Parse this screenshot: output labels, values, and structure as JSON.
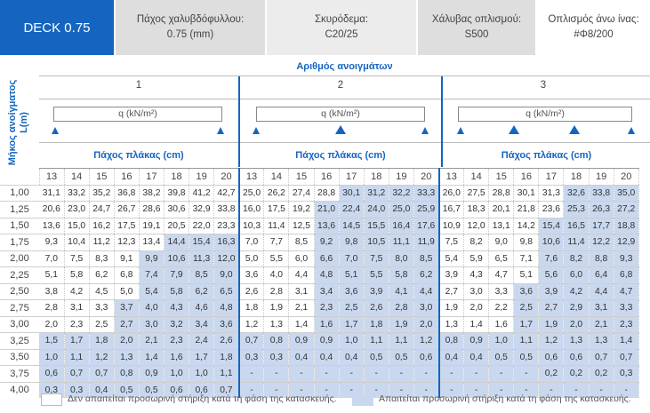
{
  "header": {
    "title": "DECK 0.75",
    "boxes": [
      {
        "label": "Πάχος χαλυβδόφυλλου:",
        "value": "0.75 (mm)"
      },
      {
        "label": "Σκυρόδεμα:",
        "value": "C20/25"
      },
      {
        "label": "Χάλυβας οπλισμού:",
        "value": "S500"
      },
      {
        "label": "Οπλισμός άνω ίνας:",
        "value": "#Φ8/200"
      }
    ]
  },
  "side_label_line1": "Μήκος ανοίγματος",
  "side_label_line2": "L(m)",
  "spans_title": "Αριθμός ανοιγμάτων",
  "groups": [
    {
      "number": "1",
      "load_label": "q (kN/m²)",
      "thickness_title": "Πάχος πλάκας (cm)"
    },
    {
      "number": "2",
      "load_label": "q (kN/m²)",
      "thickness_title": "Πάχος πλάκας (cm)"
    },
    {
      "number": "3",
      "load_label": "q (kN/m²)",
      "thickness_title": "Πάχος πλάκας (cm)"
    }
  ],
  "thicknesses": [
    "13",
    "14",
    "15",
    "16",
    "17",
    "18",
    "19",
    "20"
  ],
  "rows": [
    {
      "L": "1,00",
      "v": [
        [
          "31,1",
          "33,2",
          "35,2",
          "36,8",
          "38,2",
          "39,8",
          "41,2",
          "42,7"
        ],
        [
          "25,0",
          "26,2",
          "27,4",
          "28,8",
          "30,1",
          "31,2",
          "32,2",
          "33,3"
        ],
        [
          "26,0",
          "27,5",
          "28,8",
          "30,1",
          "31,3",
          "32,6",
          "33,8",
          "35,0"
        ]
      ]
    },
    {
      "L": "1,25",
      "v": [
        [
          "20,6",
          "23,0",
          "24,7",
          "26,7",
          "28,6",
          "30,6",
          "32,9",
          "33,8"
        ],
        [
          "16,0",
          "17,5",
          "19,2",
          "21,0",
          "22,4",
          "24,0",
          "25,0",
          "25,9"
        ],
        [
          "16,7",
          "18,3",
          "20,1",
          "21,8",
          "23,6",
          "25,3",
          "26,3",
          "27,2"
        ]
      ]
    },
    {
      "L": "1,50",
      "v": [
        [
          "13,6",
          "15,0",
          "16,2",
          "17,5",
          "19,1",
          "20,5",
          "22,0",
          "23,3"
        ],
        [
          "10,3",
          "11,4",
          "12,5",
          "13,6",
          "14,5",
          "15,5",
          "16,4",
          "17,6"
        ],
        [
          "10,9",
          "12,0",
          "13,1",
          "14,2",
          "15,4",
          "16,5",
          "17,7",
          "18,8"
        ]
      ]
    },
    {
      "L": "1,75",
      "v": [
        [
          "9,3",
          "10,4",
          "11,2",
          "12,3",
          "13,4",
          "14,4",
          "15,4",
          "16,3"
        ],
        [
          "7,0",
          "7,7",
          "8,5",
          "9,2",
          "9,8",
          "10,5",
          "11,1",
          "11,9"
        ],
        [
          "7,5",
          "8,2",
          "9,0",
          "9,8",
          "10,6",
          "11,4",
          "12,2",
          "12,9"
        ]
      ]
    },
    {
      "L": "2,00",
      "v": [
        [
          "7,0",
          "7,5",
          "8,3",
          "9,1",
          "9,9",
          "10,6",
          "11,3",
          "12,0"
        ],
        [
          "5,0",
          "5,5",
          "6,0",
          "6,6",
          "7,0",
          "7,5",
          "8,0",
          "8,5"
        ],
        [
          "5,4",
          "5,9",
          "6,5",
          "7,1",
          "7,6",
          "8,2",
          "8,8",
          "9,3"
        ]
      ]
    },
    {
      "L": "2,25",
      "v": [
        [
          "5,1",
          "5,8",
          "6,2",
          "6,8",
          "7,4",
          "7,9",
          "8,5",
          "9,0"
        ],
        [
          "3,6",
          "4,0",
          "4,4",
          "4,8",
          "5,1",
          "5,5",
          "5,8",
          "6,2"
        ],
        [
          "3,9",
          "4,3",
          "4,7",
          "5,1",
          "5,6",
          "6,0",
          "6,4",
          "6,8"
        ]
      ]
    },
    {
      "L": "2,50",
      "v": [
        [
          "3,8",
          "4,2",
          "4,5",
          "5,0",
          "5,4",
          "5,8",
          "6,2",
          "6,5"
        ],
        [
          "2,6",
          "2,8",
          "3,1",
          "3,4",
          "3,6",
          "3,9",
          "4,1",
          "4,4"
        ],
        [
          "2,7",
          "3,0",
          "3,3",
          "3,6",
          "3,9",
          "4,2",
          "4,4",
          "4,7"
        ]
      ]
    },
    {
      "L": "2,75",
      "v": [
        [
          "2,8",
          "3,1",
          "3,3",
          "3,7",
          "4,0",
          "4,3",
          "4,6",
          "4,8"
        ],
        [
          "1,8",
          "1,9",
          "2,1",
          "2,3",
          "2,5",
          "2,6",
          "2,8",
          "3,0"
        ],
        [
          "1,9",
          "2,0",
          "2,2",
          "2,5",
          "2,7",
          "2,9",
          "3,1",
          "3,3"
        ]
      ]
    },
    {
      "L": "3,00",
      "v": [
        [
          "2,0",
          "2,3",
          "2,5",
          "2,7",
          "3,0",
          "3,2",
          "3,4",
          "3,6"
        ],
        [
          "1,2",
          "1,3",
          "1,4",
          "1,6",
          "1,7",
          "1,8",
          "1,9",
          "2,0"
        ],
        [
          "1,3",
          "1,4",
          "1,6",
          "1,7",
          "1,9",
          "2,0",
          "2,1",
          "2,3"
        ]
      ]
    },
    {
      "L": "3,25",
      "v": [
        [
          "1,5",
          "1,7",
          "1,8",
          "2,0",
          "2,1",
          "2,3",
          "2,4",
          "2,6"
        ],
        [
          "0,7",
          "0,8",
          "0,9",
          "0,9",
          "1,0",
          "1,1",
          "1,1",
          "1,2"
        ],
        [
          "0,8",
          "0,9",
          "1,0",
          "1,1",
          "1,2",
          "1,3",
          "1,3",
          "1,4"
        ]
      ]
    },
    {
      "L": "3,50",
      "v": [
        [
          "1,0",
          "1,1",
          "1,2",
          "1,3",
          "1,4",
          "1,6",
          "1,7",
          "1,8"
        ],
        [
          "0,3",
          "0,3",
          "0,4",
          "0,4",
          "0,4",
          "0,5",
          "0,5",
          "0,6"
        ],
        [
          "0,4",
          "0,4",
          "0,5",
          "0,5",
          "0,6",
          "0,6",
          "0,7",
          "0,7"
        ]
      ]
    },
    {
      "L": "3,75",
      "v": [
        [
          "0,6",
          "0,7",
          "0,7",
          "0,8",
          "0,9",
          "1,0",
          "1,0",
          "1,1"
        ],
        [
          "-",
          "-",
          "-",
          "-",
          "-",
          "-",
          "-",
          "-"
        ],
        [
          "-",
          "-",
          "-",
          "-",
          "0,2",
          "0,2",
          "0,2",
          "0,3"
        ]
      ]
    },
    {
      "L": "4,00",
      "v": [
        [
          "0,3",
          "0,3",
          "0,4",
          "0,5",
          "0,5",
          "0,6",
          "0,6",
          "0,7"
        ],
        [
          "-",
          "-",
          "-",
          "-",
          "-",
          "-",
          "-",
          "-"
        ],
        [
          "-",
          "-",
          "-",
          "-",
          "-",
          "-",
          "-",
          "-"
        ]
      ]
    }
  ],
  "shaded_from": [
    [
      9,
      9,
      9,
      7,
      4,
      3,
      3,
      3
    ],
    [
      9,
      9,
      9,
      1,
      0,
      0,
      0,
      0
    ],
    [
      9,
      9,
      9,
      6,
      2,
      0,
      0,
      0
    ]
  ],
  "shade_color": "#c9d8ee",
  "accent_color": "#1565c0",
  "legend": {
    "no_support": "Δεν απαιτείται προσωρινή στήριξη κατά τη φάση της κατασκευής.",
    "support": "Απαιτείται προσωρινή στήριξη κατά τη φάση της κατασκευής."
  }
}
